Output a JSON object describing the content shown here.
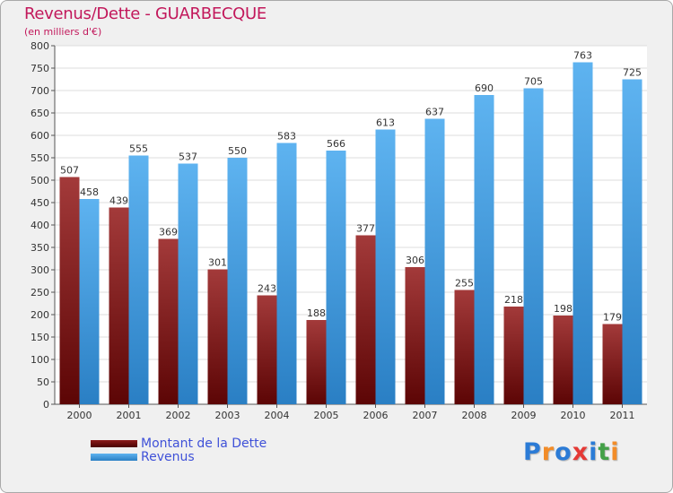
{
  "chart_data": {
    "type": "bar",
    "title": "Revenus/Dette - GUARBECQUE",
    "subtitle": "(en milliers d'€)",
    "categories": [
      "2000",
      "2001",
      "2002",
      "2003",
      "2004",
      "2005",
      "2006",
      "2007",
      "2008",
      "2009",
      "2010",
      "2011"
    ],
    "series": [
      {
        "name": "Montant de la Dette",
        "color": "#8b1a1a",
        "values": [
          507,
          439,
          369,
          301,
          243,
          188,
          377,
          306,
          255,
          218,
          198,
          179
        ]
      },
      {
        "name": "Revenus",
        "color": "#4aa3e8",
        "values": [
          458,
          555,
          537,
          550,
          583,
          566,
          613,
          637,
          690,
          705,
          763,
          725
        ]
      }
    ],
    "ylim": [
      0,
      800
    ],
    "yticks": [
      0,
      50,
      100,
      150,
      200,
      250,
      300,
      350,
      400,
      450,
      500,
      550,
      600,
      650,
      700,
      750,
      800
    ],
    "grid": true,
    "legend": "bottom-left"
  },
  "logo": {
    "text": "Proxiti",
    "colors": [
      "#2b7bd6",
      "#f28c28",
      "#2b7bd6",
      "#e53935",
      "#2b7bd6",
      "#43a047",
      "#f28c28"
    ]
  }
}
